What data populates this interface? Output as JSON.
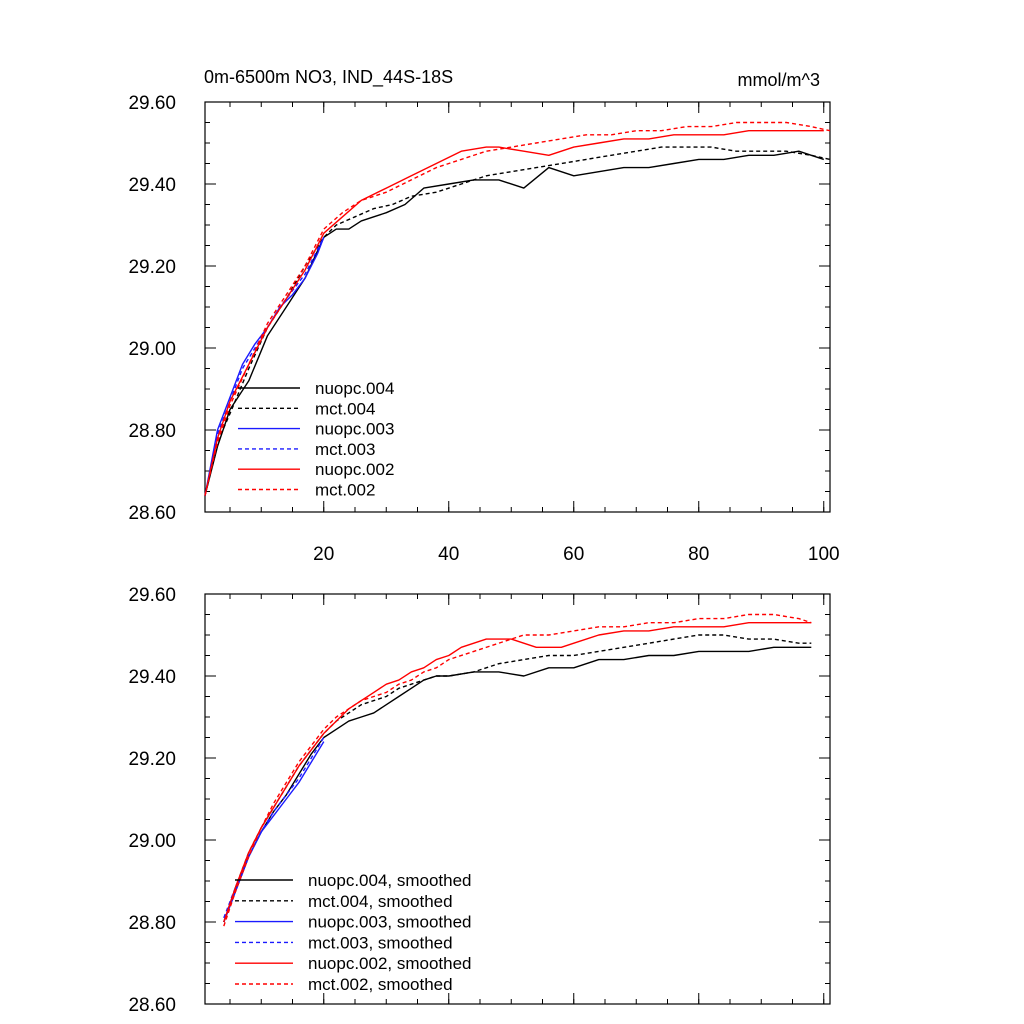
{
  "chart_data": [
    {
      "type": "line",
      "panel": "raw",
      "title": "0m-6500m NO3, IND_44S-18S",
      "units": "mmol/m^3",
      "xlabel": "",
      "ylabel": "",
      "xlim": [
        1,
        101
      ],
      "ylim": [
        28.6,
        29.6
      ],
      "x_ticks": [
        20,
        40,
        60,
        80,
        100
      ],
      "x_tick_labels": [
        "20",
        "40",
        "60",
        "80",
        "100"
      ],
      "y_ticks": [
        28.6,
        28.8,
        29.0,
        29.2,
        29.4,
        29.6
      ],
      "y_tick_labels": [
        "28.60",
        "28.80",
        "29.00",
        "29.20",
        "29.40",
        "29.60"
      ],
      "legend_position": "bottom-left",
      "series": [
        {
          "name": "nuopc.004",
          "color": "#000000",
          "dash": "solid",
          "x": [
            1,
            3,
            5,
            8,
            11,
            14,
            17,
            20,
            22,
            24,
            26,
            28,
            30,
            33,
            36,
            40,
            44,
            48,
            52,
            56,
            60,
            64,
            68,
            72,
            76,
            80,
            84,
            88,
            92,
            96,
            100
          ],
          "values": [
            28.64,
            28.76,
            28.85,
            28.92,
            29.03,
            29.1,
            29.17,
            29.27,
            29.29,
            29.29,
            29.31,
            29.32,
            29.33,
            29.35,
            29.39,
            29.4,
            29.41,
            29.41,
            29.39,
            29.44,
            29.42,
            29.43,
            29.44,
            29.44,
            29.45,
            29.46,
            29.46,
            29.47,
            29.47,
            29.48,
            29.46
          ]
        },
        {
          "name": "mct.004",
          "color": "#000000",
          "dash": "dashed",
          "x": [
            1,
            3,
            5,
            8,
            11,
            14,
            17,
            20,
            22,
            25,
            28,
            31,
            34,
            38,
            42,
            46,
            50,
            54,
            58,
            62,
            66,
            70,
            74,
            78,
            82,
            86,
            90,
            94,
            98,
            101
          ],
          "values": [
            28.64,
            28.77,
            28.84,
            28.95,
            29.05,
            29.12,
            29.2,
            29.27,
            29.3,
            29.32,
            29.34,
            29.35,
            29.37,
            29.38,
            29.4,
            29.42,
            29.43,
            29.44,
            29.45,
            29.46,
            29.47,
            29.48,
            29.49,
            29.49,
            29.49,
            29.48,
            29.48,
            29.48,
            29.47,
            29.46
          ]
        },
        {
          "name": "nuopc.003",
          "color": "#1a1aff",
          "dash": "solid",
          "x": [
            1,
            3,
            5,
            7,
            9,
            11,
            13,
            15,
            17,
            19,
            20
          ],
          "values": [
            28.64,
            28.8,
            28.88,
            28.96,
            29.01,
            29.05,
            29.1,
            29.13,
            29.17,
            29.23,
            29.27
          ]
        },
        {
          "name": "mct.003",
          "color": "#1a1aff",
          "dash": "dashed",
          "x": [
            1,
            3,
            5,
            7,
            9,
            11,
            13,
            15,
            17,
            19,
            20
          ],
          "values": [
            28.64,
            28.79,
            28.87,
            28.95,
            29.0,
            29.05,
            29.1,
            29.14,
            29.18,
            29.24,
            29.27
          ]
        },
        {
          "name": "nuopc.002",
          "color": "#ff0000",
          "dash": "solid",
          "x": [
            1,
            3,
            5,
            8,
            11,
            14,
            17,
            20,
            23,
            26,
            30,
            34,
            38,
            42,
            46,
            48,
            52,
            56,
            60,
            64,
            68,
            72,
            76,
            80,
            84,
            88,
            92,
            96,
            100
          ],
          "values": [
            28.64,
            28.78,
            28.87,
            28.96,
            29.05,
            29.12,
            29.19,
            29.28,
            29.32,
            29.36,
            29.39,
            29.42,
            29.45,
            29.48,
            29.49,
            29.49,
            29.48,
            29.47,
            29.49,
            29.5,
            29.51,
            29.51,
            29.52,
            29.52,
            29.52,
            29.53,
            29.53,
            29.53,
            29.53
          ]
        },
        {
          "name": "mct.002",
          "color": "#ff0000",
          "dash": "dashed",
          "x": [
            1,
            3,
            5,
            8,
            11,
            14,
            17,
            20,
            23,
            26,
            30,
            34,
            38,
            42,
            46,
            50,
            54,
            58,
            62,
            66,
            70,
            74,
            78,
            82,
            86,
            90,
            94,
            98,
            101
          ],
          "values": [
            28.64,
            28.77,
            28.86,
            28.96,
            29.06,
            29.13,
            29.2,
            29.29,
            29.33,
            29.36,
            29.38,
            29.41,
            29.44,
            29.46,
            29.48,
            29.49,
            29.5,
            29.51,
            29.52,
            29.52,
            29.53,
            29.53,
            29.54,
            29.54,
            29.55,
            29.55,
            29.55,
            29.54,
            29.53
          ]
        }
      ]
    },
    {
      "type": "line",
      "panel": "smoothed",
      "title": "",
      "xlabel": "",
      "ylabel": "",
      "xlim": [
        1,
        101
      ],
      "ylim": [
        28.6,
        29.6
      ],
      "y_ticks": [
        28.6,
        28.8,
        29.0,
        29.2,
        29.4,
        29.6
      ],
      "y_tick_labels": [
        "28.60",
        "28.80",
        "29.00",
        "29.20",
        "29.40",
        "29.60"
      ],
      "legend_position": "bottom-left",
      "series": [
        {
          "name": "nuopc.004, smoothed",
          "color": "#000000",
          "dash": "solid",
          "x": [
            4,
            6,
            8,
            10,
            12,
            14,
            16,
            18,
            20,
            22,
            24,
            26,
            28,
            30,
            32,
            34,
            36,
            38,
            40,
            44,
            48,
            52,
            56,
            60,
            64,
            68,
            72,
            76,
            80,
            84,
            88,
            92,
            96,
            98
          ],
          "values": [
            28.8,
            28.88,
            28.96,
            29.02,
            29.07,
            29.11,
            29.16,
            29.21,
            29.25,
            29.27,
            29.29,
            29.3,
            29.31,
            29.33,
            29.35,
            29.37,
            29.39,
            29.4,
            29.4,
            29.41,
            29.41,
            29.4,
            29.42,
            29.42,
            29.44,
            29.44,
            29.45,
            29.45,
            29.46,
            29.46,
            29.46,
            29.47,
            29.47,
            29.47
          ]
        },
        {
          "name": "mct.004, smoothed",
          "color": "#000000",
          "dash": "dashed",
          "x": [
            4,
            6,
            8,
            10,
            12,
            14,
            16,
            18,
            20,
            22,
            24,
            26,
            28,
            30,
            32,
            34,
            36,
            38,
            40,
            44,
            48,
            52,
            56,
            60,
            64,
            68,
            72,
            76,
            80,
            84,
            88,
            92,
            96,
            98
          ],
          "values": [
            28.8,
            28.89,
            28.97,
            29.03,
            29.08,
            29.13,
            29.18,
            29.22,
            29.26,
            29.29,
            29.31,
            29.33,
            29.34,
            29.35,
            29.37,
            29.38,
            29.39,
            29.4,
            29.4,
            29.41,
            29.43,
            29.44,
            29.45,
            29.45,
            29.46,
            29.47,
            29.48,
            29.49,
            29.5,
            29.5,
            29.49,
            29.49,
            29.48,
            29.48
          ]
        },
        {
          "name": "nuopc.003, smoothed",
          "color": "#1a1aff",
          "dash": "solid",
          "x": [
            4,
            6,
            8,
            10,
            12,
            14,
            16,
            18,
            20
          ],
          "values": [
            28.8,
            28.88,
            28.96,
            29.02,
            29.06,
            29.1,
            29.14,
            29.19,
            29.24
          ]
        },
        {
          "name": "mct.003, smoothed",
          "color": "#1a1aff",
          "dash": "dashed",
          "x": [
            4,
            6,
            8,
            10,
            12,
            14,
            16,
            18,
            20
          ],
          "values": [
            28.81,
            28.89,
            28.96,
            29.02,
            29.07,
            29.11,
            29.15,
            29.2,
            29.25
          ]
        },
        {
          "name": "nuopc.002, smoothed",
          "color": "#ff0000",
          "dash": "solid",
          "x": [
            4,
            6,
            8,
            10,
            12,
            14,
            16,
            18,
            20,
            22,
            24,
            26,
            28,
            30,
            32,
            34,
            36,
            38,
            40,
            42,
            44,
            46,
            48,
            50,
            52,
            54,
            56,
            58,
            60,
            64,
            68,
            72,
            76,
            80,
            84,
            88,
            92,
            96,
            98
          ],
          "values": [
            28.8,
            28.89,
            28.97,
            29.03,
            29.08,
            29.13,
            29.18,
            29.22,
            29.26,
            29.29,
            29.32,
            29.34,
            29.36,
            29.38,
            29.39,
            29.41,
            29.42,
            29.44,
            29.45,
            29.47,
            29.48,
            29.49,
            29.49,
            29.49,
            29.48,
            29.47,
            29.47,
            29.47,
            29.48,
            29.5,
            29.51,
            29.51,
            29.52,
            29.52,
            29.52,
            29.53,
            29.53,
            29.53,
            29.53
          ]
        },
        {
          "name": "mct.002, smoothed",
          "color": "#ff0000",
          "dash": "dashed",
          "x": [
            4,
            6,
            8,
            10,
            12,
            14,
            16,
            18,
            20,
            22,
            24,
            26,
            28,
            30,
            32,
            34,
            36,
            38,
            40,
            44,
            48,
            52,
            56,
            60,
            64,
            68,
            72,
            76,
            80,
            84,
            88,
            92,
            96,
            98
          ],
          "values": [
            28.79,
            28.88,
            28.96,
            29.03,
            29.09,
            29.14,
            29.19,
            29.23,
            29.27,
            29.3,
            29.32,
            29.34,
            29.35,
            29.36,
            29.38,
            29.39,
            29.41,
            29.42,
            29.44,
            29.46,
            29.48,
            29.5,
            29.5,
            29.51,
            29.52,
            29.52,
            29.53,
            29.53,
            29.54,
            29.54,
            29.55,
            29.55,
            29.54,
            29.53
          ]
        }
      ]
    }
  ]
}
